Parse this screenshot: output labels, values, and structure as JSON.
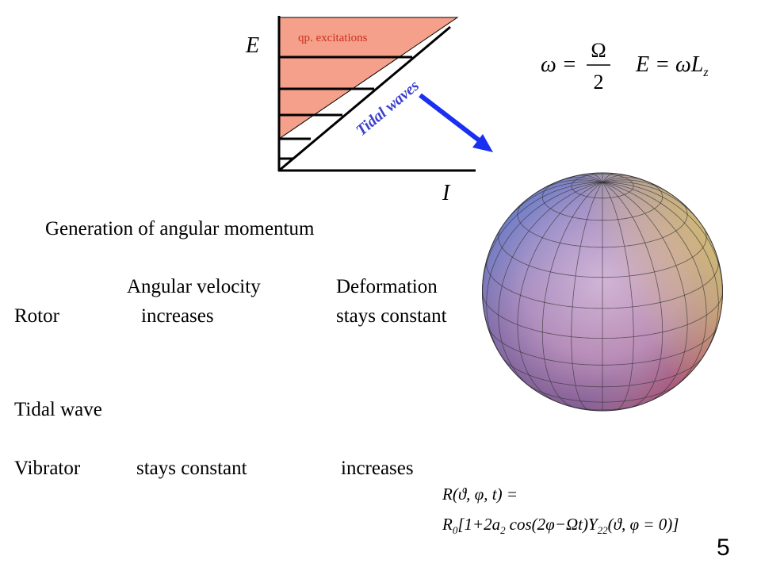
{
  "diagram": {
    "y_axis_label": "E",
    "x_axis_label": "I",
    "region_label": "qp. excitations",
    "line_label": "Tidal waves"
  },
  "formulas": {
    "omega": {
      "lhs": "ω =",
      "numerator": "Ω",
      "denominator": "2"
    },
    "energy": {
      "main": "E = ωL",
      "sub": "z"
    },
    "radius_line1": "R(ϑ, φ, t) =",
    "radius_line2": [
      "R",
      "0",
      "[1+2a",
      "2",
      "cos(2φ−Ωt)Y",
      "22",
      "(ϑ, φ = 0)]"
    ]
  },
  "heading": "Generation of angular momentum",
  "table": {
    "columns": [
      "Angular velocity",
      "Deformation"
    ],
    "rows": [
      {
        "label": "Rotor",
        "cells": [
          "increases",
          "stays constant"
        ]
      },
      {
        "label": "Tidal wave"
      },
      {
        "label": "Vibrator",
        "cells": [
          "stays constant",
          "increases"
        ]
      }
    ]
  },
  "page_number": "5"
}
